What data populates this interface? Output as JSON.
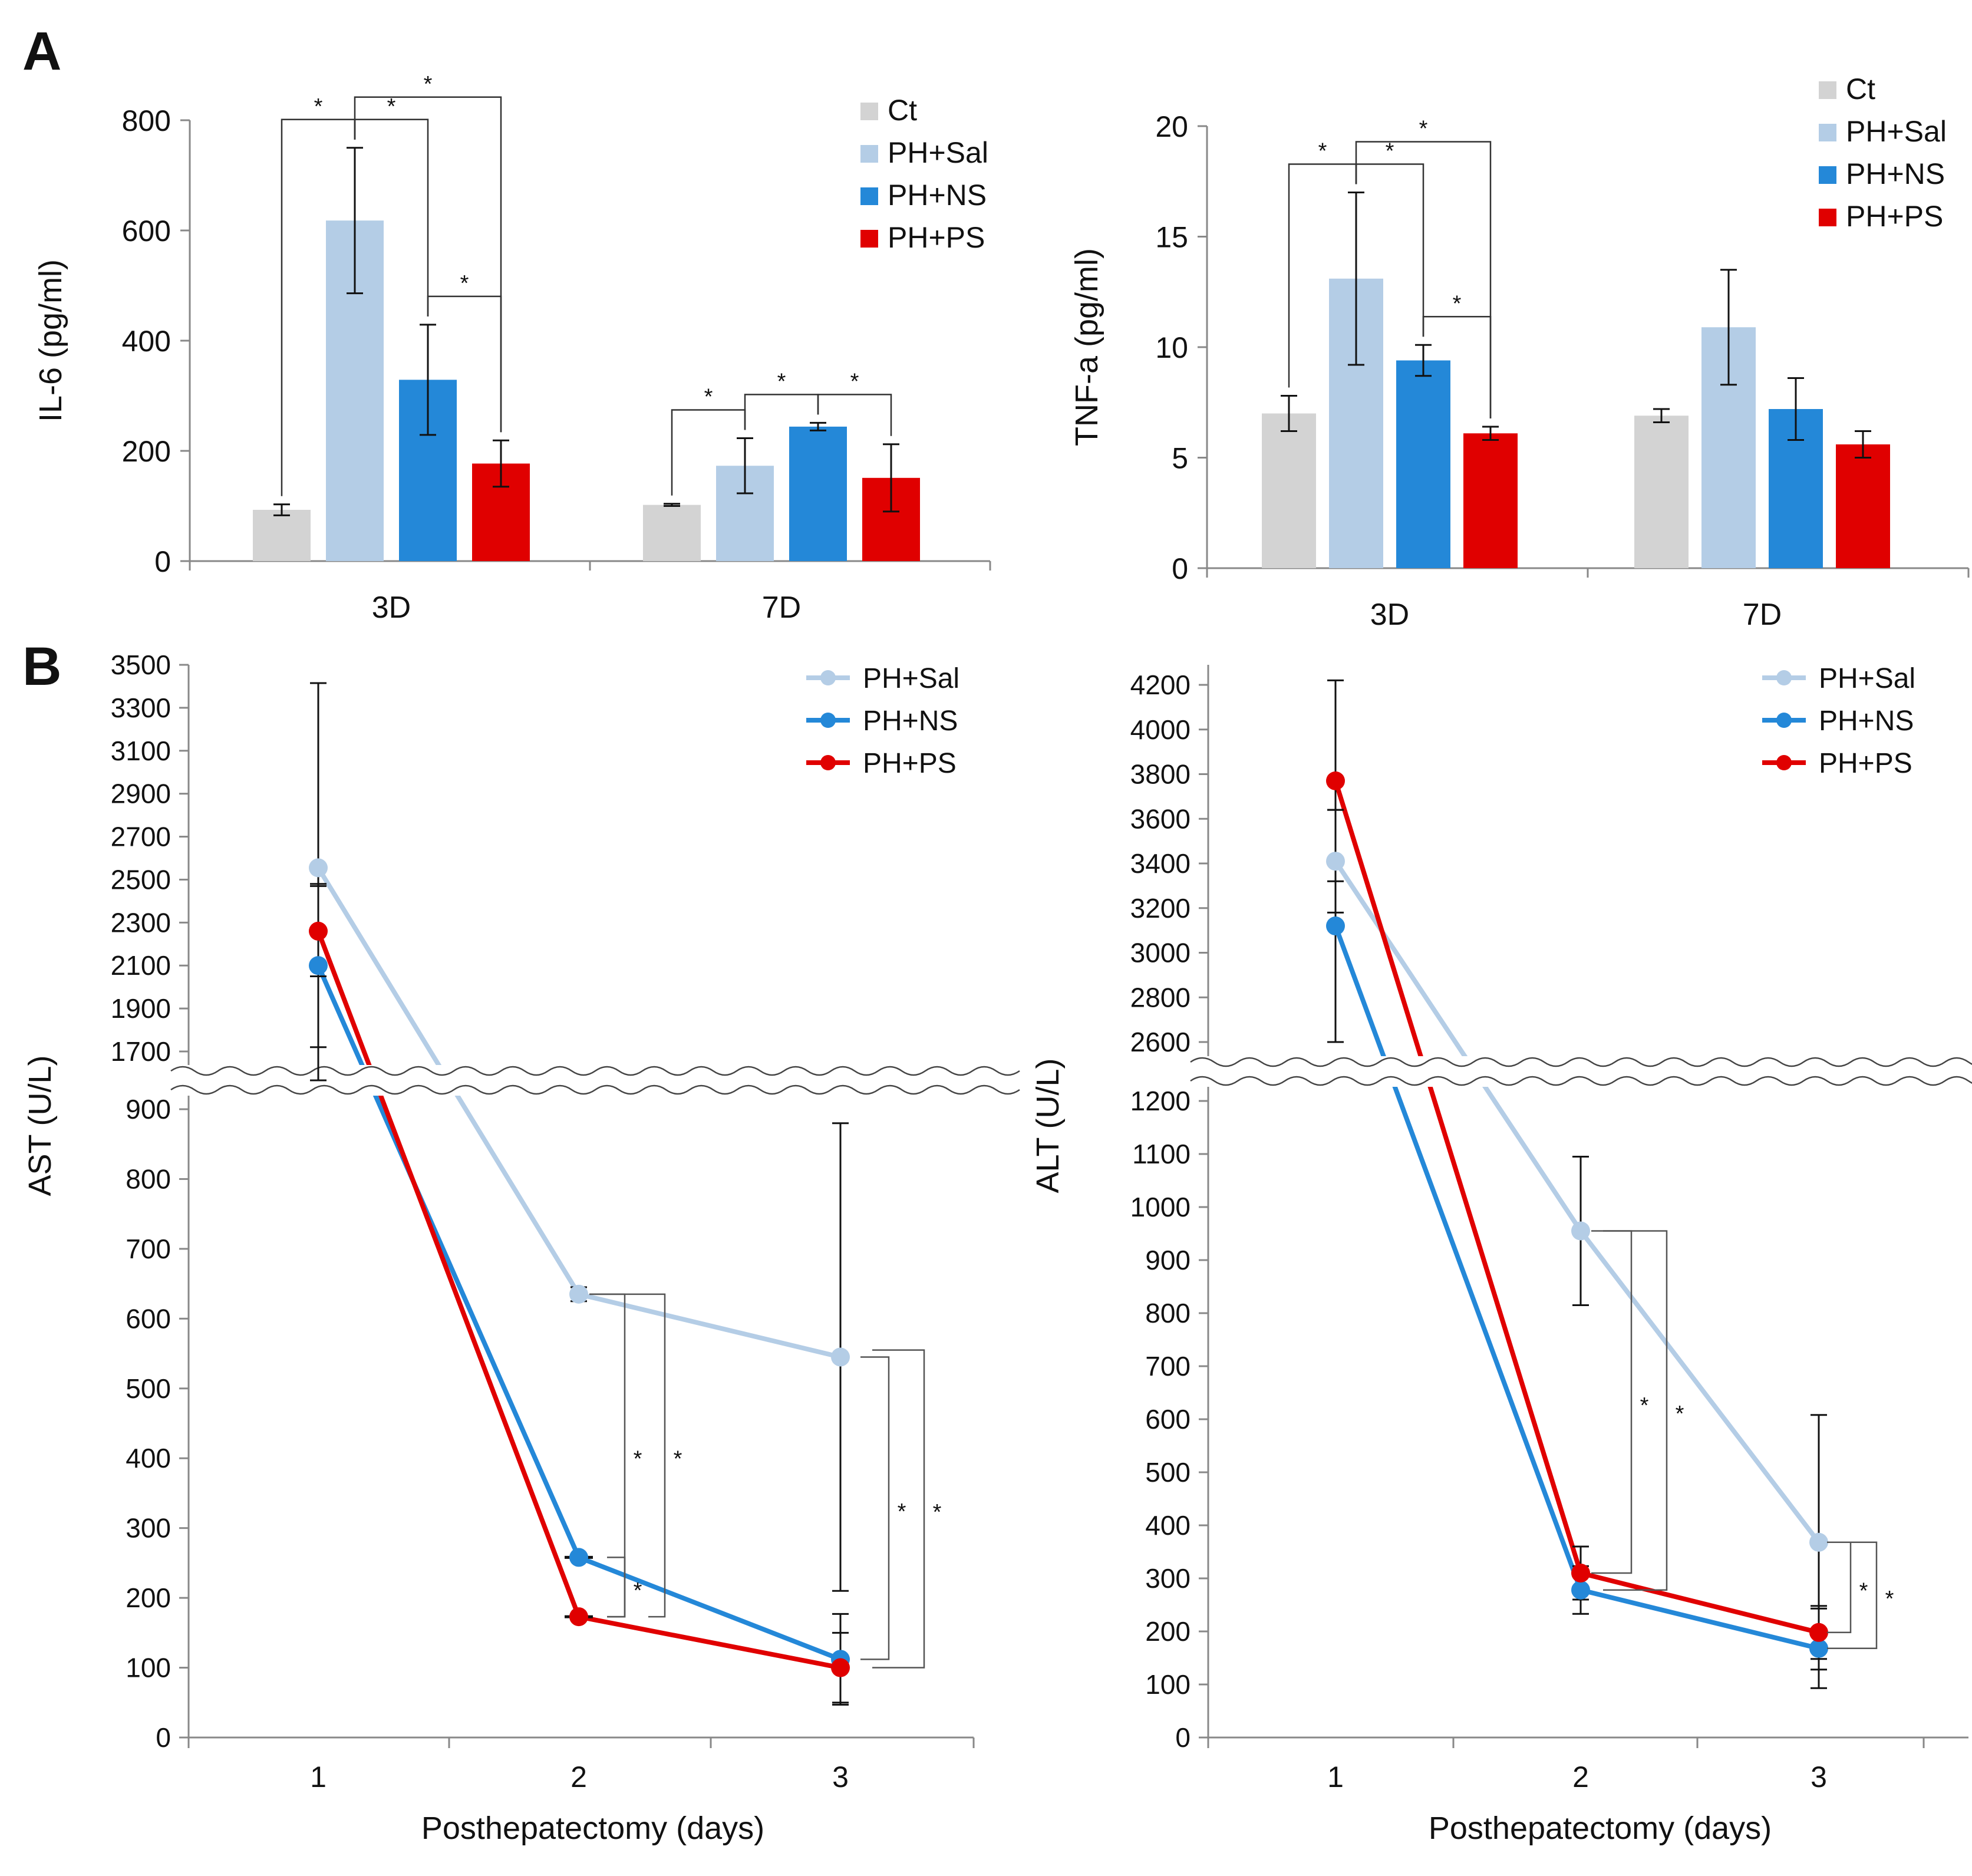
{
  "panels": {
    "a_label": "A",
    "b_label": "B"
  },
  "colors": {
    "Ct": "#d3d3d3",
    "PH+Sal": "#b4cde6",
    "PH+NS": "#2488d8",
    "PH+PS": "#e00000",
    "error": "#111111",
    "axis": "#888888",
    "bracket": "#333333"
  },
  "chart_data": [
    {
      "id": "il6",
      "type": "bar",
      "ylabel": "IL-6 (pg/ml)",
      "ylim": [
        0,
        800
      ],
      "yticks": [
        0,
        200,
        400,
        600,
        800
      ],
      "categories": [
        "3D",
        "7D"
      ],
      "series": [
        {
          "name": "Ct",
          "values": [
            93,
            102
          ],
          "errors": [
            10,
            2
          ]
        },
        {
          "name": "PH+Sal",
          "values": [
            618,
            173
          ],
          "errors": [
            132,
            50
          ]
        },
        {
          "name": "PH+NS",
          "values": [
            329,
            244
          ],
          "errors": [
            100,
            7
          ]
        },
        {
          "name": "PH+PS",
          "values": [
            177,
            151
          ],
          "errors": [
            42,
            61
          ]
        }
      ],
      "legend": [
        "Ct",
        "PH+Sal",
        "PH+NS",
        "PH+PS"
      ],
      "legend_position": "top-right",
      "significance": [
        {
          "category": 0,
          "from": 0,
          "to": 1,
          "label": "*"
        },
        {
          "category": 0,
          "from": 1,
          "to": 2,
          "label": "*"
        },
        {
          "category": 0,
          "from": 1,
          "to": 3,
          "label": "*"
        },
        {
          "category": 0,
          "from": 2,
          "to": 3,
          "label": "*"
        },
        {
          "category": 1,
          "from": 0,
          "to": 1,
          "label": "*"
        },
        {
          "category": 1,
          "from": 1,
          "to": 2,
          "label": "*"
        },
        {
          "category": 1,
          "from": 2,
          "to": 3,
          "label": "*"
        }
      ]
    },
    {
      "id": "tnfa",
      "type": "bar",
      "ylabel": "TNF-a (pg/ml)",
      "ylim": [
        0,
        20
      ],
      "yticks": [
        0,
        5,
        10,
        15,
        20
      ],
      "categories": [
        "3D",
        "7D"
      ],
      "series": [
        {
          "name": "Ct",
          "values": [
            7.0,
            6.9
          ],
          "errors": [
            0.8,
            0.3
          ]
        },
        {
          "name": "PH+Sal",
          "values": [
            13.1,
            10.9
          ],
          "errors": [
            3.9,
            2.6
          ]
        },
        {
          "name": "PH+NS",
          "values": [
            9.4,
            7.2
          ],
          "errors": [
            0.7,
            1.4
          ]
        },
        {
          "name": "PH+PS",
          "values": [
            6.1,
            5.6
          ],
          "errors": [
            0.3,
            0.6
          ]
        }
      ],
      "legend": [
        "Ct",
        "PH+Sal",
        "PH+NS",
        "PH+PS"
      ],
      "legend_position": "top-right",
      "significance": [
        {
          "category": 0,
          "from": 0,
          "to": 1,
          "label": "*"
        },
        {
          "category": 0,
          "from": 1,
          "to": 2,
          "label": "*"
        },
        {
          "category": 0,
          "from": 1,
          "to": 3,
          "label": "*"
        },
        {
          "category": 0,
          "from": 2,
          "to": 3,
          "label": "*"
        }
      ]
    },
    {
      "id": "ast",
      "type": "line",
      "xlabel": "Posthepatectomy (days)",
      "ylabel": "AST (U/L)",
      "x": [
        1,
        2,
        3
      ],
      "axis_break": {
        "lower": [
          0,
          900
        ],
        "upper": [
          1700,
          3500
        ]
      },
      "yticks_lower": [
        0,
        100,
        200,
        300,
        400,
        500,
        600,
        700,
        800,
        900
      ],
      "yticks_upper": [
        1700,
        1900,
        2100,
        2300,
        2500,
        2700,
        2900,
        3100,
        3300,
        3500
      ],
      "series": [
        {
          "name": "PH+Sal",
          "values": [
            2555,
            635,
            545
          ],
          "errors": [
            860,
            10,
            335
          ]
        },
        {
          "name": "PH+NS",
          "values": [
            2100,
            258,
            112
          ],
          "errors": [
            380,
            0,
            65
          ]
        },
        {
          "name": "PH+PS",
          "values": [
            2260,
            173,
            100
          ],
          "errors": [
            210,
            0,
            50
          ]
        }
      ],
      "legend": [
        "PH+Sal",
        "PH+NS",
        "PH+PS"
      ],
      "legend_position": "top-right",
      "significance": [
        {
          "x": 2,
          "from": "PH+Sal",
          "to": "PH+NS",
          "label": "*"
        },
        {
          "x": 2,
          "from": "PH+Sal",
          "to": "PH+PS",
          "label": "*"
        },
        {
          "x": 2,
          "from": "PH+NS",
          "to": "PH+PS",
          "label": "*"
        },
        {
          "x": 3,
          "from": "PH+Sal",
          "to": "PH+NS",
          "label": "*"
        },
        {
          "x": 3,
          "from": "PH+Sal",
          "to": "PH+PS",
          "label": "*"
        }
      ]
    },
    {
      "id": "alt",
      "type": "line",
      "xlabel": "Posthepatectomy (days)",
      "ylabel": "ALT (U/L)",
      "x": [
        1,
        2,
        3
      ],
      "axis_break": {
        "lower": [
          0,
          1200
        ],
        "upper": [
          2600,
          4200
        ]
      },
      "yticks_lower": [
        0,
        100,
        200,
        300,
        400,
        500,
        600,
        700,
        800,
        900,
        1000,
        1100,
        1200
      ],
      "yticks_upper": [
        2600,
        2800,
        3000,
        3200,
        3400,
        3600,
        3800,
        4000,
        4200
      ],
      "series": [
        {
          "name": "PH+Sal",
          "values": [
            3410,
            955,
            368
          ],
          "errors": [
            230,
            140,
            240
          ]
        },
        {
          "name": "PH+NS",
          "values": [
            3120,
            278,
            168
          ],
          "errors": [
            520,
            45,
            75
          ]
        },
        {
          "name": "PH+PS",
          "values": [
            3770,
            310,
            198
          ],
          "errors": [
            450,
            50,
            50
          ]
        }
      ],
      "legend": [
        "PH+Sal",
        "PH+NS",
        "PH+PS"
      ],
      "legend_position": "top-right",
      "significance": [
        {
          "x": 2,
          "from": "PH+Sal",
          "to": "PH+PS",
          "label": "*"
        },
        {
          "x": 2,
          "from": "PH+Sal",
          "to": "PH+NS",
          "label": "*"
        },
        {
          "x": 3,
          "from": "PH+Sal",
          "to": "PH+PS",
          "label": "*"
        },
        {
          "x": 3,
          "from": "PH+Sal",
          "to": "PH+NS",
          "label": "*"
        }
      ]
    }
  ]
}
